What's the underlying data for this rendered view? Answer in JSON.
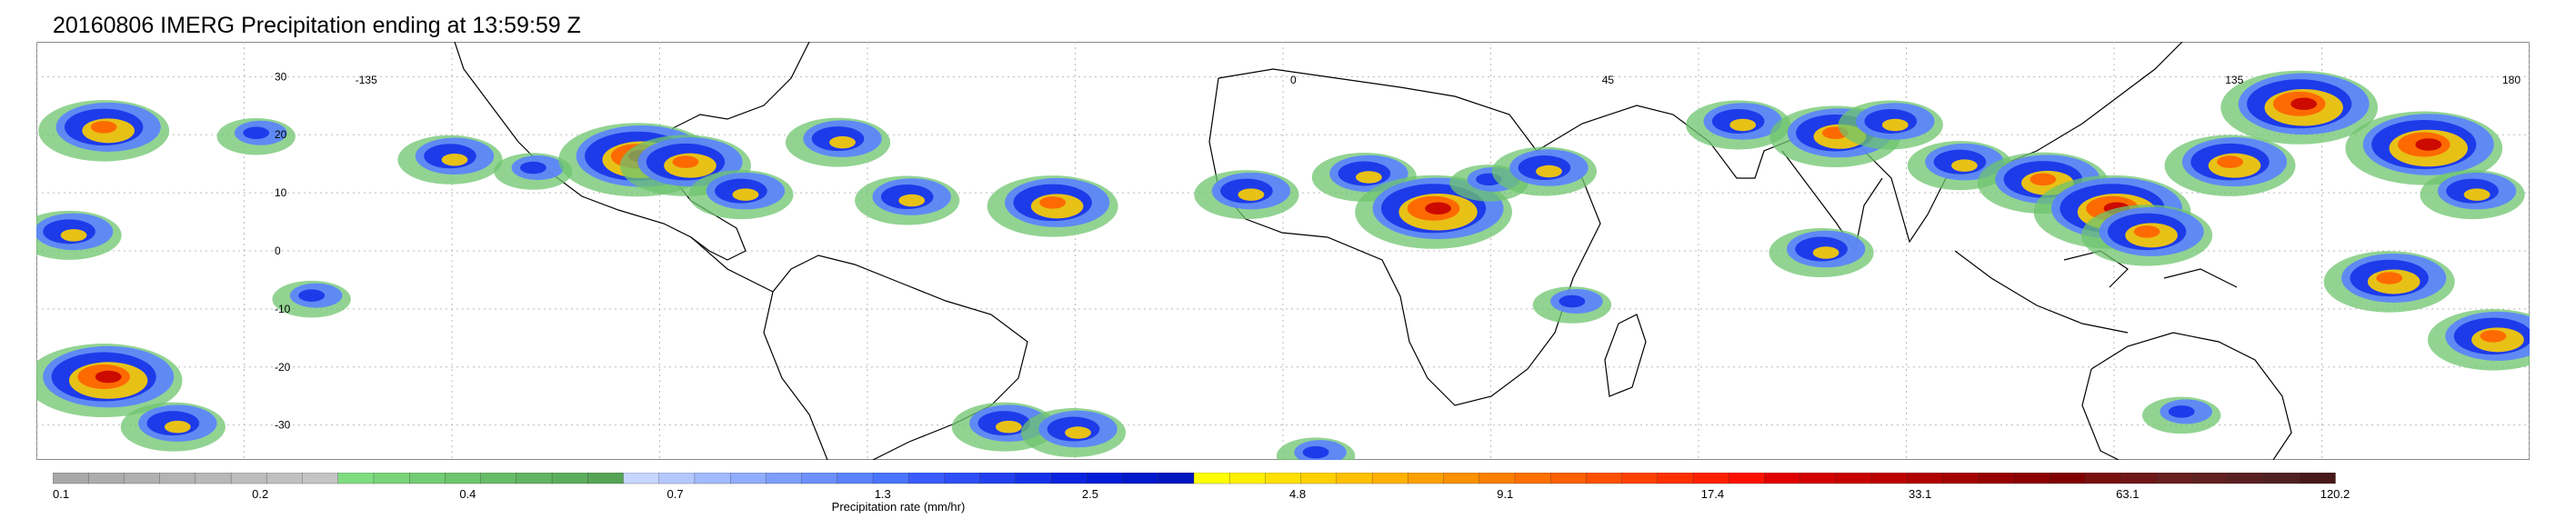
{
  "title": "20160806 IMERG Precipitation ending at 13:59:59 Z",
  "map": {
    "lon_labels": [
      "-135",
      "0",
      "45",
      "135",
      "180"
    ],
    "lon_label_values": [
      -135,
      0,
      45,
      135,
      180
    ],
    "lat_labels": [
      "30",
      "20",
      "10",
      "0",
      "-10",
      "-20",
      "-30"
    ],
    "lat_label_values": [
      30,
      20,
      10,
      0,
      -10,
      -20,
      -30
    ],
    "lon_range": [
      -180,
      180
    ],
    "lat_range": [
      -36,
      36
    ],
    "grid": "dotted",
    "coastline_color": "#000000"
  },
  "colorbar": {
    "title": "Precipitation rate (mm/hr)",
    "labels": [
      "0.1",
      "0.2",
      "0.4",
      "0.7",
      "1.3",
      "2.5",
      "4.8",
      "9.1",
      "17.4",
      "33.1",
      "63.1",
      "120.2"
    ],
    "colors": [
      "#a8a8a8",
      "#acacac",
      "#b0b0b0",
      "#b4b4b4",
      "#b8b8b8",
      "#bcbcbc",
      "#c0c0c0",
      "#c4c4c4",
      "#7fdc7f",
      "#79d479",
      "#73cc73",
      "#6dc46d",
      "#67bc67",
      "#61b461",
      "#5bac5b",
      "#55a455",
      "#c6d6ff",
      "#b4c8ff",
      "#a2baff",
      "#90acff",
      "#7e9eff",
      "#6c90ff",
      "#5a82ff",
      "#4874ff",
      "#3a5cff",
      "#2e4ef8",
      "#2240f0",
      "#1632e8",
      "#0a24e0",
      "#001cd8",
      "#0018cc",
      "#0014c0",
      "#ffff00",
      "#fff000",
      "#ffe000",
      "#ffd000",
      "#ffc000",
      "#ffb000",
      "#ffa000",
      "#ff9000",
      "#ff8000",
      "#ff7000",
      "#ff6000",
      "#ff5000",
      "#ff4000",
      "#ff3000",
      "#ff2000",
      "#ff1000",
      "#e00000",
      "#d40000",
      "#c80000",
      "#bc0000",
      "#b00000",
      "#a40000",
      "#980000",
      "#8c0000",
      "#800000",
      "#781010",
      "#701818",
      "#682020",
      "#602020",
      "#582020",
      "#502020",
      "#481818"
    ]
  },
  "precip_cells": [
    {
      "lon": -170,
      "lat": 21,
      "intensity": 4
    },
    {
      "lon": -148,
      "lat": 20,
      "intensity": 2
    },
    {
      "lon": -120,
      "lat": 16,
      "intensity": 3
    },
    {
      "lon": -108,
      "lat": 14,
      "intensity": 2
    },
    {
      "lon": -93,
      "lat": 16,
      "intensity": 5
    },
    {
      "lon": -86,
      "lat": 15,
      "intensity": 4
    },
    {
      "lon": -78,
      "lat": 10,
      "intensity": 3
    },
    {
      "lon": -64,
      "lat": 19,
      "intensity": 3
    },
    {
      "lon": -54,
      "lat": 9,
      "intensity": 3
    },
    {
      "lon": -33,
      "lat": 8,
      "intensity": 4
    },
    {
      "lon": -5,
      "lat": 10,
      "intensity": 3
    },
    {
      "lon": 12,
      "lat": 13,
      "intensity": 3
    },
    {
      "lon": 22,
      "lat": 7,
      "intensity": 5
    },
    {
      "lon": 30,
      "lat": 12,
      "intensity": 2
    },
    {
      "lon": 38,
      "lat": 14,
      "intensity": 3
    },
    {
      "lon": 66,
      "lat": 22,
      "intensity": 3
    },
    {
      "lon": 80,
      "lat": 20,
      "intensity": 4
    },
    {
      "lon": 88,
      "lat": 22,
      "intensity": 3
    },
    {
      "lon": 98,
      "lat": 15,
      "intensity": 3
    },
    {
      "lon": 110,
      "lat": 12,
      "intensity": 4
    },
    {
      "lon": 120,
      "lat": 7,
      "intensity": 5
    },
    {
      "lon": 125,
      "lat": 3,
      "intensity": 4
    },
    {
      "lon": 137,
      "lat": 15,
      "intensity": 4
    },
    {
      "lon": 147,
      "lat": 25,
      "intensity": 5
    },
    {
      "lon": 165,
      "lat": 18,
      "intensity": 5
    },
    {
      "lon": 172,
      "lat": 10,
      "intensity": 3
    },
    {
      "lon": 78,
      "lat": 0,
      "intensity": 3
    },
    {
      "lon": 160,
      "lat": -5,
      "intensity": 4
    },
    {
      "lon": 175,
      "lat": -15,
      "intensity": 4
    },
    {
      "lon": -170,
      "lat": -22,
      "intensity": 5
    },
    {
      "lon": -160,
      "lat": -30,
      "intensity": 3
    },
    {
      "lon": -175,
      "lat": 3,
      "intensity": 3
    },
    {
      "lon": -140,
      "lat": -8,
      "intensity": 2
    },
    {
      "lon": -40,
      "lat": -30,
      "intensity": 3
    },
    {
      "lon": -30,
      "lat": -31,
      "intensity": 3
    },
    {
      "lon": 42,
      "lat": -9,
      "intensity": 2
    },
    {
      "lon": 130,
      "lat": -28,
      "intensity": 2
    },
    {
      "lon": 5,
      "lat": -35,
      "intensity": 2
    }
  ]
}
